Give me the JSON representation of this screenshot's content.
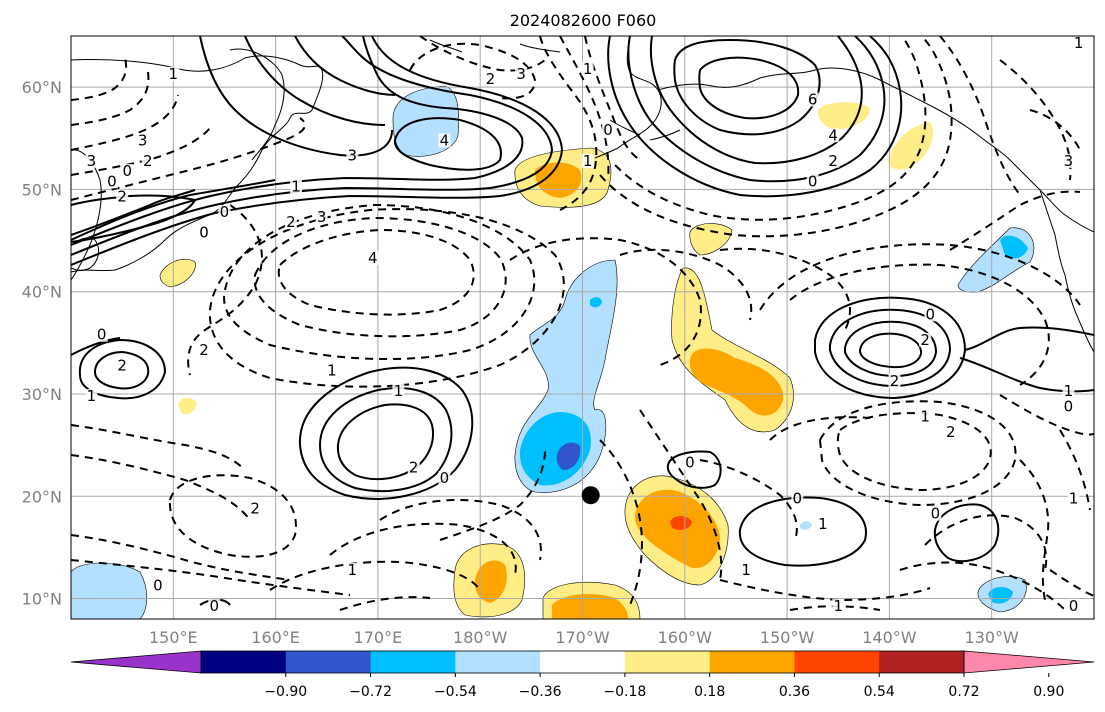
{
  "title": "2024082600 F060",
  "map": {
    "lon_range": [
      140,
      240
    ],
    "lat_range": [
      8,
      65
    ],
    "grid": true,
    "lon_ticks": [
      {
        "lon": 150,
        "label": "150°E"
      },
      {
        "lon": 160,
        "label": "160°E"
      },
      {
        "lon": 170,
        "label": "170°E"
      },
      {
        "lon": 180,
        "label": "180°W"
      },
      {
        "lon": 190,
        "label": "170°W"
      },
      {
        "lon": 200,
        "label": "160°W"
      },
      {
        "lon": 210,
        "label": "150°W"
      },
      {
        "lon": 220,
        "label": "140°W"
      },
      {
        "lon": 230,
        "label": "130°W"
      }
    ],
    "lat_ticks": [
      {
        "lat": 10,
        "label": "10°N"
      },
      {
        "lat": 20,
        "label": "20°N"
      },
      {
        "lat": 30,
        "label": "30°N"
      },
      {
        "lat": 40,
        "label": "40°N"
      },
      {
        "lat": 50,
        "label": "50°N"
      },
      {
        "lat": 60,
        "label": "60°N"
      }
    ],
    "marker": {
      "lon": 190.8,
      "lat": 20.1,
      "color": "#000000"
    }
  },
  "colorbar": {
    "colors": [
      "#9933cc",
      "#000080",
      "#3355cc",
      "#00bfff",
      "#b3e0ff",
      "#ffffff",
      "#ffee88",
      "#ffa500",
      "#ff4500",
      "#b22222",
      "#ff88aa"
    ],
    "labels": [
      "−0.90",
      "−0.72",
      "−0.54",
      "−0.36",
      "−0.18",
      "0.18",
      "0.36",
      "0.54",
      "0.72",
      "0.90"
    ]
  },
  "fill_colors": {
    "pos1": "#ffee88",
    "pos2": "#ffa500",
    "pos3": "#ff4500",
    "neg1": "#b3e0ff",
    "neg2": "#00bfff",
    "neg3": "#3355cc"
  },
  "contour_labels": [
    {
      "text": "3",
      "lon": 147,
      "lat": 54.5
    },
    {
      "text": "2",
      "lon": 147.5,
      "lat": 52.5
    },
    {
      "text": "0",
      "lon": 145.5,
      "lat": 51.5
    },
    {
      "text": "3",
      "lon": 142,
      "lat": 52.5
    },
    {
      "text": "0",
      "lon": 144,
      "lat": 50.5
    },
    {
      "text": "2",
      "lon": 145,
      "lat": 49
    },
    {
      "text": "1",
      "lon": 150,
      "lat": 61
    },
    {
      "text": "3",
      "lon": 164.5,
      "lat": 47
    },
    {
      "text": "4",
      "lon": 176.5,
      "lat": 54.5
    },
    {
      "text": "3",
      "lon": 167.5,
      "lat": 53
    },
    {
      "text": "1",
      "lon": 162,
      "lat": 50
    },
    {
      "text": "0",
      "lon": 155,
      "lat": 47.5
    },
    {
      "text": "0",
      "lon": 153,
      "lat": 45.5
    },
    {
      "text": "2",
      "lon": 161.5,
      "lat": 46.5
    },
    {
      "text": "4",
      "lon": 169.5,
      "lat": 43
    },
    {
      "text": "3",
      "lon": 184,
      "lat": 61
    },
    {
      "text": "2",
      "lon": 181,
      "lat": 60.5
    },
    {
      "text": "1",
      "lon": 190.5,
      "lat": 61.5
    },
    {
      "text": "0",
      "lon": 192.5,
      "lat": 55.5
    },
    {
      "text": "1",
      "lon": 190.5,
      "lat": 52.5
    },
    {
      "text": "6",
      "lon": 212.5,
      "lat": 58.5
    },
    {
      "text": "4",
      "lon": 214.5,
      "lat": 55
    },
    {
      "text": "2",
      "lon": 214.5,
      "lat": 52.5
    },
    {
      "text": "0",
      "lon": 212.5,
      "lat": 50.5
    },
    {
      "text": "1",
      "lon": 238.5,
      "lat": 64
    },
    {
      "text": "3",
      "lon": 237.5,
      "lat": 52.5
    },
    {
      "text": "0",
      "lon": 143,
      "lat": 35.5
    },
    {
      "text": "2",
      "lon": 145,
      "lat": 32.5
    },
    {
      "text": "1",
      "lon": 142,
      "lat": 29.5
    },
    {
      "text": "2",
      "lon": 153,
      "lat": 34
    },
    {
      "text": "1",
      "lon": 165.5,
      "lat": 32
    },
    {
      "text": "1",
      "lon": 172,
      "lat": 30
    },
    {
      "text": "2",
      "lon": 173.5,
      "lat": 22.5
    },
    {
      "text": "0",
      "lon": 176.5,
      "lat": 21.5
    },
    {
      "text": "2",
      "lon": 158,
      "lat": 18.5
    },
    {
      "text": "1",
      "lon": 167.5,
      "lat": 12.5
    },
    {
      "text": "0",
      "lon": 148.5,
      "lat": 11
    },
    {
      "text": "0",
      "lon": 154,
      "lat": 9
    },
    {
      "text": "0",
      "lon": 200.5,
      "lat": 23
    },
    {
      "text": "0",
      "lon": 211,
      "lat": 19.5
    },
    {
      "text": "1",
      "lon": 213.5,
      "lat": 17
    },
    {
      "text": "1",
      "lon": 206,
      "lat": 12.5
    },
    {
      "text": "1",
      "lon": 215,
      "lat": 9
    },
    {
      "text": "0",
      "lon": 224.5,
      "lat": 18
    },
    {
      "text": "0",
      "lon": 224,
      "lat": 37.5
    },
    {
      "text": "2",
      "lon": 223.5,
      "lat": 35
    },
    {
      "text": "2",
      "lon": 220.5,
      "lat": 31
    },
    {
      "text": "1",
      "lon": 237.5,
      "lat": 30
    },
    {
      "text": "0",
      "lon": 237.5,
      "lat": 28.5
    },
    {
      "text": "1",
      "lon": 223.5,
      "lat": 27.5
    },
    {
      "text": "2",
      "lon": 226,
      "lat": 26
    },
    {
      "text": "1",
      "lon": 238,
      "lat": 19.5
    },
    {
      "text": "0",
      "lon": 238,
      "lat": 9
    }
  ]
}
